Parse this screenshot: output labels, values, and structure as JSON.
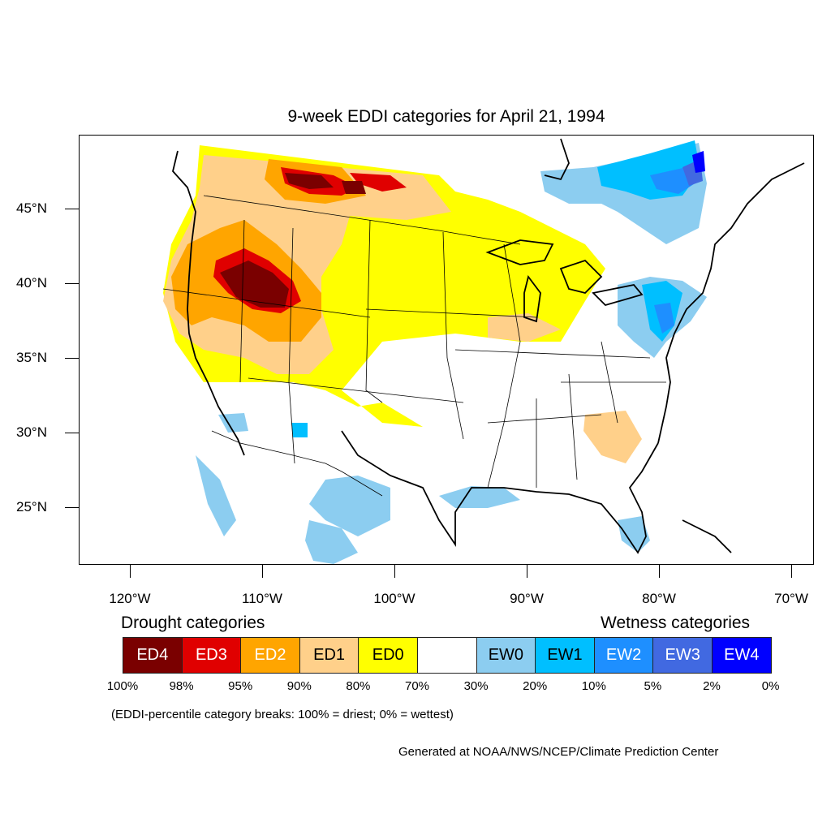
{
  "title": "9-week EDDI categories for April 21, 1994",
  "axes": {
    "y_labels": [
      "45°N",
      "40°N",
      "35°N",
      "30°N",
      "25°N"
    ],
    "x_labels": [
      "120°W",
      "110°W",
      "100°W",
      "90°W",
      "80°W",
      "70°W"
    ]
  },
  "legend": {
    "drought_title": "Drought categories",
    "wetness_title": "Wetness categories",
    "categories": [
      {
        "label": "ED4",
        "color": "#7a0000",
        "text_color": "#ffffff"
      },
      {
        "label": "ED3",
        "color": "#e00000",
        "text_color": "#ffffff"
      },
      {
        "label": "ED2",
        "color": "#ffa500",
        "text_color": "#ffffff"
      },
      {
        "label": "ED1",
        "color": "#ffd08a",
        "text_color": "#000000"
      },
      {
        "label": "ED0",
        "color": "#ffff00",
        "text_color": "#000000"
      },
      {
        "label": "",
        "color": "#ffffff",
        "text_color": "#000000"
      },
      {
        "label": "EW0",
        "color": "#8ccdf0",
        "text_color": "#000000"
      },
      {
        "label": "EW1",
        "color": "#00bfff",
        "text_color": "#000000"
      },
      {
        "label": "EW2",
        "color": "#1e8fff",
        "text_color": "#ffffff"
      },
      {
        "label": "EW3",
        "color": "#4169e1",
        "text_color": "#ffffff"
      },
      {
        "label": "EW4",
        "color": "#0000ff",
        "text_color": "#ffffff"
      }
    ],
    "breaks": [
      "100%",
      "98%",
      "95%",
      "90%",
      "80%",
      "70%",
      "30%",
      "20%",
      "10%",
      "5%",
      "2%",
      "0%"
    ]
  },
  "note": "(EDDI-percentile category breaks: 100% = driest; 0% = wettest)",
  "credit": "Generated at NOAA/NWS/NCEP/Climate Prediction Center"
}
